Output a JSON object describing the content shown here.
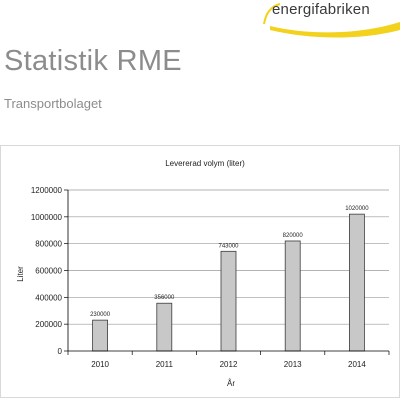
{
  "header": {
    "logo_text": "energifabriken",
    "title": "Statistik RME",
    "subtitle": "Transportbolaget"
  },
  "colors": {
    "logo_swoosh": "#f2d21c",
    "bar_fill": "#c8c8c8",
    "bar_stroke": "#3c3c3c",
    "gridline": "#9a9a9a",
    "title_gray": "#8c8c8c"
  },
  "chart_data": {
    "type": "bar",
    "title": "Levererad volym (liter)",
    "xlabel": "År",
    "ylabel": "Liter",
    "categories": [
      "2010",
      "2011",
      "2012",
      "2013",
      "2014"
    ],
    "values": [
      230000,
      356000,
      743000,
      820000,
      1020000
    ],
    "value_labels": [
      "230000",
      "356000",
      "743000",
      "820000",
      "1020000"
    ],
    "ylim": [
      0,
      1200000
    ],
    "yticks": [
      0,
      200000,
      400000,
      600000,
      800000,
      1000000,
      1200000
    ],
    "ytick_labels": [
      "0",
      "200000",
      "400000",
      "600000",
      "800000",
      "1000000",
      "1200000"
    ],
    "grid": true,
    "legend": "none"
  }
}
